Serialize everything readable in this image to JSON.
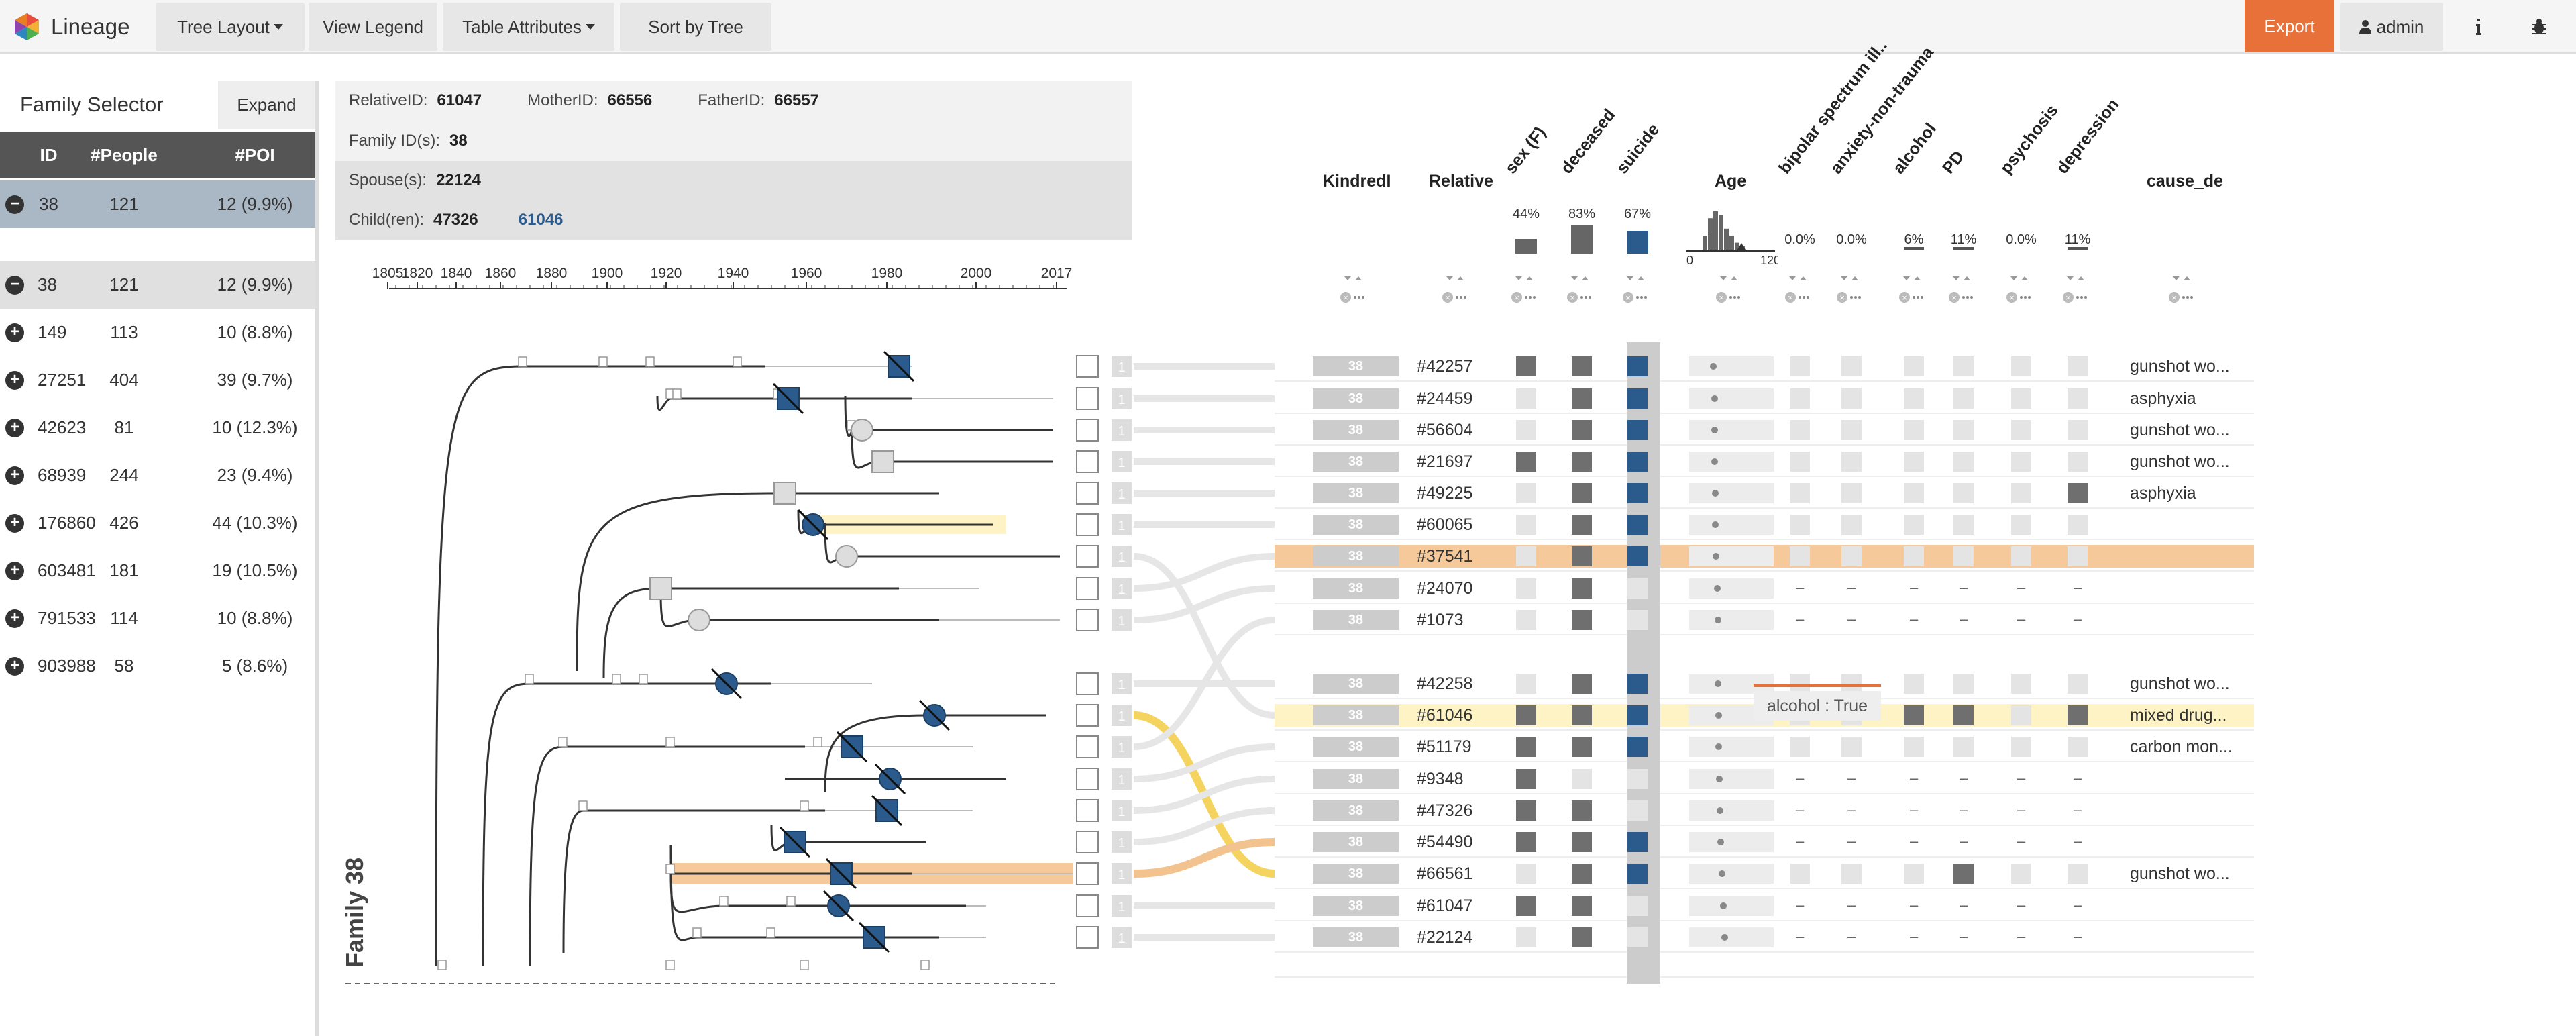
{
  "navbar": {
    "brand": "Lineage",
    "tree_layout": "Tree Layout",
    "view_legend": "View Legend",
    "table_attributes": "Table Attributes",
    "sort_by_tree": "Sort by Tree",
    "export": "Export",
    "user": "admin",
    "colors": {
      "export": "#e8713a",
      "bar": "#f5f5f5"
    }
  },
  "family_selector": {
    "title": "Family Selector",
    "expand": "Expand",
    "columns": [
      "ID",
      "#People",
      "#POI"
    ],
    "selected": {
      "id": "38",
      "people": "121",
      "poi": "12 (9.9%)"
    },
    "families": [
      {
        "id": "38",
        "people": "121",
        "poi": "12 (9.9%)",
        "icon": "minus"
      },
      {
        "id": "149",
        "people": "113",
        "poi": "10 (8.8%)",
        "icon": "plus"
      },
      {
        "id": "27251",
        "people": "404",
        "poi": "39 (9.7%)",
        "icon": "plus"
      },
      {
        "id": "42623",
        "people": "81",
        "poi": "10 (12.3%)",
        "icon": "plus"
      },
      {
        "id": "68939",
        "people": "244",
        "poi": "23 (9.4%)",
        "icon": "plus"
      },
      {
        "id": "176860",
        "people": "426",
        "poi": "44 (10.3%)",
        "icon": "plus"
      },
      {
        "id": "603481",
        "people": "181",
        "poi": "19 (10.5%)",
        "icon": "plus"
      },
      {
        "id": "791533",
        "people": "114",
        "poi": "10 (8.8%)",
        "icon": "plus"
      },
      {
        "id": "903988",
        "people": "58",
        "poi": "5 (8.6%)",
        "icon": "plus"
      }
    ]
  },
  "info": {
    "relative_id_label": "RelativeID:",
    "relative_id": "61047",
    "mother_id_label": "MotherID:",
    "mother_id": "66556",
    "father_id_label": "FatherID:",
    "father_id": "66557",
    "family_ids_label": "Family ID(s):",
    "family_ids": "38",
    "spouses_label": "Spouse(s):",
    "spouses": "22124",
    "children_label": "Child(ren):",
    "child1": "47326",
    "child2": "61046"
  },
  "timeline": {
    "ticks": [
      "1805",
      "1820",
      "1840",
      "1860",
      "1880",
      "1900",
      "1920",
      "1940",
      "1960",
      "1980",
      "2000",
      "2017"
    ]
  },
  "family_label": "Family 38",
  "table": {
    "headers": {
      "kindred": "KindredI",
      "relative": "Relative",
      "age": "Age",
      "cause": "cause_de",
      "rotated": [
        "sex (F)",
        "deceased",
        "suicide",
        "bipolar spectrum ill..",
        "anxiety-non-trauma",
        "alcohol",
        "PD",
        "psychosis",
        "depression"
      ]
    },
    "percentages": [
      "44%",
      "83%",
      "67%",
      "0.0%",
      "0.0%",
      "6%",
      "11%",
      "0.0%",
      "11%"
    ],
    "age_axis": {
      "min": "0",
      "max": "120"
    },
    "tooltip": "alcohol : True",
    "kindred_value": "38",
    "rows": [
      {
        "id": "#42257",
        "cause": "gunshot wo..."
      },
      {
        "id": "#24459",
        "cause": "asphyxia"
      },
      {
        "id": "#56604",
        "cause": "gunshot wo..."
      },
      {
        "id": "#21697",
        "cause": "gunshot wo..."
      },
      {
        "id": "#49225",
        "cause": "asphyxia"
      },
      {
        "id": "#60065",
        "cause": ""
      },
      {
        "id": "#37541",
        "cause": ""
      },
      {
        "id": "#24070",
        "cause": ""
      },
      {
        "id": "#1073",
        "cause": ""
      },
      {
        "id": "#42258",
        "cause": "gunshot wo..."
      },
      {
        "id": "#61046",
        "cause": "mixed drug..."
      },
      {
        "id": "#51179",
        "cause": "carbon mon..."
      },
      {
        "id": "#9348",
        "cause": ""
      },
      {
        "id": "#47326",
        "cause": ""
      },
      {
        "id": "#54490",
        "cause": ""
      },
      {
        "id": "#66561",
        "cause": "gunshot wo..."
      },
      {
        "id": "#61047",
        "cause": ""
      },
      {
        "id": "#22124",
        "cause": ""
      }
    ],
    "colors": {
      "suicide": "#2a5b8c",
      "dark": "#777777",
      "highlight_orange": "#f5c99a",
      "highlight_yellow": "#fdf3c4"
    }
  },
  "aggregate_label": "1",
  "dash_symbol": "–"
}
